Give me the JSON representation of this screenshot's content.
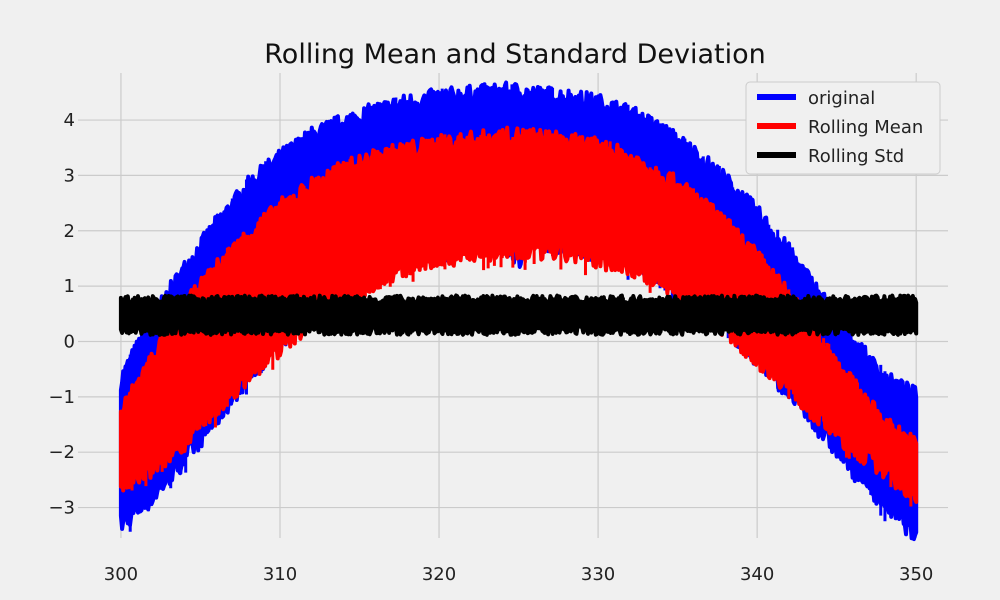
{
  "chart_data": {
    "type": "line",
    "title": "Rolling Mean and Standard Deviation",
    "xlabel": "",
    "ylabel": "",
    "xlim": [
      297.3,
      352.0
    ],
    "ylim": [
      -3.55,
      4.85
    ],
    "xticks": [
      300,
      310,
      320,
      330,
      340,
      350
    ],
    "yticks": [
      -3,
      -2,
      -1,
      0,
      1,
      2,
      3,
      4
    ],
    "grid": true,
    "legend_position": "top-right",
    "series": [
      {
        "name": "original",
        "color": "#0000ff",
        "x": [
          300,
          302,
          304,
          306,
          308,
          310,
          312,
          314,
          316,
          318,
          320,
          322,
          324,
          325,
          326,
          328,
          330,
          332,
          334,
          336,
          338,
          340,
          342,
          344,
          346,
          348,
          350
        ],
        "upper": [
          -0.7,
          0.4,
          1.3,
          2.1,
          2.8,
          3.3,
          3.7,
          3.95,
          4.15,
          4.3,
          4.4,
          4.45,
          4.5,
          4.5,
          4.45,
          4.4,
          4.3,
          4.1,
          3.8,
          3.4,
          2.9,
          2.3,
          1.6,
          0.8,
          0.0,
          -0.7,
          -1.0
        ],
        "lower": [
          -3.3,
          -2.8,
          -2.1,
          -1.4,
          -0.6,
          0.0,
          0.5,
          1.0,
          1.3,
          1.5,
          1.65,
          1.75,
          1.85,
          1.5,
          1.85,
          1.75,
          1.65,
          1.45,
          1.2,
          0.8,
          0.3,
          -0.3,
          -0.9,
          -1.6,
          -2.3,
          -2.9,
          -3.5
        ]
      },
      {
        "name": "Rolling Mean",
        "color": "#ff0000",
        "x": [
          300,
          302,
          304,
          306,
          308,
          310,
          312,
          314,
          316,
          318,
          320,
          322,
          324,
          325,
          326,
          328,
          330,
          332,
          334,
          336,
          338,
          340,
          342,
          344,
          346,
          348,
          350
        ],
        "upper": [
          -1.3,
          -0.3,
          0.6,
          1.3,
          1.9,
          2.4,
          2.8,
          3.1,
          3.3,
          3.45,
          3.55,
          3.62,
          3.68,
          3.7,
          3.68,
          3.6,
          3.5,
          3.3,
          3.0,
          2.6,
          2.1,
          1.5,
          0.8,
          0.0,
          -0.8,
          -1.5,
          -1.9
        ],
        "lower": [
          -2.6,
          -2.3,
          -1.8,
          -1.2,
          -0.6,
          -0.1,
          0.4,
          0.8,
          1.1,
          1.35,
          1.5,
          1.6,
          1.65,
          1.6,
          1.65,
          1.6,
          1.5,
          1.35,
          1.1,
          0.7,
          0.25,
          -0.3,
          -0.8,
          -1.4,
          -1.9,
          -2.3,
          -2.8
        ]
      },
      {
        "name": "Rolling Std",
        "color": "#000000",
        "x": [
          300,
          350
        ],
        "upper": [
          0.75,
          0.75
        ],
        "lower": [
          0.2,
          0.2
        ]
      }
    ],
    "legend": [
      "original",
      "Rolling Mean",
      "Rolling Std"
    ]
  }
}
